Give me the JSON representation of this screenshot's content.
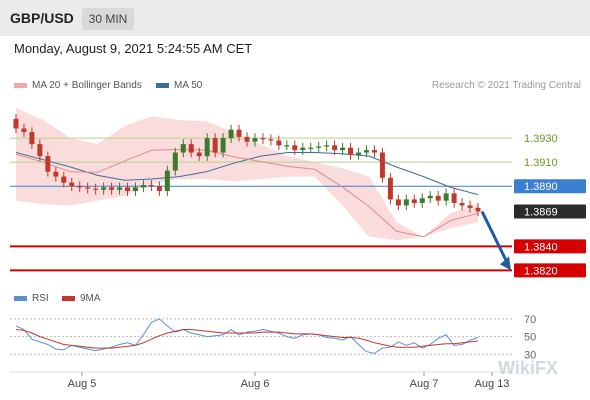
{
  "header": {
    "pair": "GBP/USD",
    "timeframe": "30 MIN"
  },
  "timestamp": "Monday, August 9, 2021 5:24:55 AM CET",
  "legend": {
    "ma20": "MA 20 + Bollinger Bands",
    "ma50": "MA 50",
    "credit": "Research © 2021 Trading Central"
  },
  "rsi_legend": {
    "rsi": "RSI",
    "ma9": "9MA"
  },
  "watermark": "WikiFX",
  "colors": {
    "bollinger": "#f9d6d6",
    "ma20": "#e08a8a",
    "ma50": "#3a6e9e",
    "candle_up": "#3d7a2a",
    "candle_down": "#c0392b",
    "green_level": "#b5d48c",
    "blue_level": "#3b7fd1",
    "red_level": "#d60000",
    "arrow": "#1f5aa6",
    "rsi": "#5b8fd4",
    "ma9": "#c0392b"
  },
  "chart_data": [
    {
      "type": "candlestick",
      "title": "GBP/USD 30 MIN",
      "x_ticks": [
        "Aug 5",
        "Aug 6",
        "Aug 7",
        "Aug 13"
      ],
      "y_ticks": [
        1.393,
        1.391,
        1.389,
        1.3869,
        1.384,
        1.382
      ],
      "ylim": [
        1.3812,
        1.3965
      ],
      "levels": [
        {
          "label": "1.3930",
          "value": 1.393,
          "kind": "resistance"
        },
        {
          "label": "1.3910",
          "value": 1.391,
          "kind": "resistance"
        },
        {
          "label": "1.3890",
          "value": 1.389,
          "kind": "pivot"
        },
        {
          "label": "1.3869",
          "value": 1.3869,
          "kind": "last"
        },
        {
          "label": "1.3840",
          "value": 1.384,
          "kind": "support"
        },
        {
          "label": "1.3820",
          "value": 1.382,
          "kind": "support"
        }
      ],
      "close_series": [
        1.3938,
        1.3935,
        1.3925,
        1.3915,
        1.3902,
        1.3898,
        1.3893,
        1.389,
        1.3889,
        1.3888,
        1.3887,
        1.3889,
        1.3887,
        1.3889,
        1.3886,
        1.3889,
        1.3891,
        1.389,
        1.3886,
        1.3903,
        1.3918,
        1.3925,
        1.3918,
        1.3915,
        1.393,
        1.3918,
        1.393,
        1.3937,
        1.3931,
        1.3927,
        1.393,
        1.3929,
        1.3928,
        1.3924,
        1.3924,
        1.392,
        1.3922,
        1.3922,
        1.3923,
        1.3924,
        1.392,
        1.3922,
        1.3916,
        1.3918,
        1.392,
        1.3918,
        1.3897,
        1.3879,
        1.3874,
        1.3879,
        1.3876,
        1.388,
        1.3882,
        1.3878,
        1.3884,
        1.3876,
        1.3874,
        1.3872,
        1.3869
      ],
      "bollinger": {
        "upper": [
          1.3955,
          1.3945,
          1.393,
          1.3925,
          1.394,
          1.3948,
          1.3945,
          1.3944,
          1.3935,
          1.3925,
          1.3915,
          1.391,
          1.3905,
          1.3898,
          1.386,
          1.3848,
          1.3868,
          1.3875
        ],
        "lower": [
          1.3878,
          1.3875,
          1.3874,
          1.3878,
          1.3882,
          1.3892,
          1.3896,
          1.3896,
          1.3894,
          1.3896,
          1.3898,
          1.3898,
          1.3874,
          1.3848,
          1.3845,
          1.3848,
          1.3855,
          1.386
        ]
      },
      "ma50": [
        1.3918,
        1.3912,
        1.3906,
        1.3899,
        1.3895,
        1.3896,
        1.3898,
        1.3902,
        1.3909,
        1.3915,
        1.3918,
        1.3918,
        1.3917,
        1.3915,
        1.3906,
        1.3898,
        1.3889,
        1.3883
      ],
      "projection": {
        "from": 1.3869,
        "to": 1.382
      }
    },
    {
      "type": "line",
      "title": "RSI",
      "y_ticks": [
        70,
        50,
        30
      ],
      "ylim": [
        10,
        80
      ],
      "series": [
        {
          "name": "RSI",
          "values": [
            62,
            58,
            47,
            44,
            41,
            36,
            35,
            40,
            38,
            36,
            34,
            36,
            38,
            41,
            43,
            40,
            52,
            66,
            70,
            62,
            55,
            58,
            54,
            52,
            50,
            51,
            52,
            58,
            52,
            55,
            56,
            58,
            56,
            54,
            50,
            48,
            52,
            53,
            52,
            49,
            48,
            46,
            50,
            41,
            33,
            31,
            37,
            38,
            44,
            40,
            43,
            37,
            41,
            48,
            52,
            40,
            41,
            46,
            49
          ]
        },
        {
          "name": "9MA",
          "values": [
            58,
            57,
            54,
            50,
            47,
            44,
            41,
            40,
            39,
            38,
            37,
            37,
            37,
            38,
            39,
            40,
            43,
            47,
            51,
            54,
            56,
            58,
            58,
            57,
            56,
            55,
            54,
            54,
            54,
            54,
            54,
            55,
            55,
            55,
            54,
            53,
            53,
            53,
            52,
            51,
            50,
            49,
            49,
            48,
            46,
            43,
            41,
            39,
            38,
            38,
            38,
            39,
            40,
            41,
            42,
            42,
            43,
            44,
            45
          ]
        }
      ]
    }
  ]
}
